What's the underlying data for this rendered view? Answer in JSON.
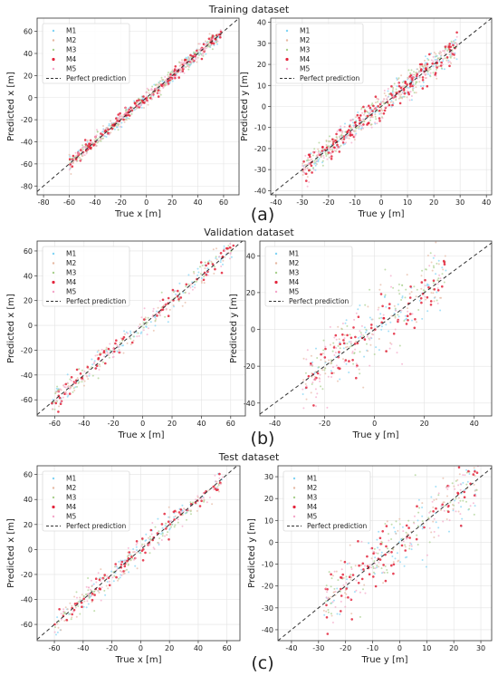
{
  "figure": {
    "section_titles": [
      "Training dataset",
      "Validation dataset",
      "Test dataset"
    ],
    "panel_labels": [
      "(a)",
      "(b)",
      "(c)"
    ],
    "legend": [
      "M1",
      "M2",
      "M3",
      "M4",
      "M5",
      "Perfect prediction"
    ],
    "series_colors": {
      "M1": "#7fd3f5",
      "M2": "#e6b8a2",
      "M3": "#a8d08d",
      "M4": "#e3243b",
      "M5": "#f4a6c8"
    },
    "perfect_color": "#333333"
  },
  "chart_data": [
    {
      "id": "train-x",
      "type": "scatter",
      "xlabel": "True x [m]",
      "ylabel": "Predicted x [m]",
      "xlim": [
        -85,
        72
      ],
      "ylim": [
        -88,
        72
      ],
      "xticks": [
        -80,
        -60,
        -40,
        -20,
        0,
        20,
        40,
        60
      ],
      "yticks": [
        -80,
        -60,
        -40,
        -20,
        0,
        20,
        40,
        60
      ],
      "data_range": [
        -60,
        58
      ],
      "spread": 3,
      "legend": "top-left",
      "grid": true
    },
    {
      "id": "train-y",
      "type": "scatter",
      "xlabel": "True y [m]",
      "ylabel": "Predicted y [m]",
      "xlim": [
        -42,
        42
      ],
      "ylim": [
        -42,
        42
      ],
      "xticks": [
        -40,
        -30,
        -20,
        -10,
        0,
        10,
        20,
        30,
        40
      ],
      "yticks": [
        -40,
        -30,
        -20,
        -10,
        0,
        10,
        20,
        30,
        40
      ],
      "data_range": [
        -30,
        29
      ],
      "spread": 3,
      "legend": "top-left",
      "grid": true
    },
    {
      "id": "val-x",
      "type": "scatter",
      "xlabel": "True x [m]",
      "ylabel": "Predicted x [m]",
      "xlim": [
        -72,
        70
      ],
      "ylim": [
        -73,
        68
      ],
      "xticks": [
        -60,
        -40,
        -20,
        0,
        20,
        40,
        60
      ],
      "yticks": [
        -60,
        -40,
        -20,
        0,
        20,
        40,
        60
      ],
      "data_range": [
        -62,
        62
      ],
      "spread": 5,
      "legend": "top-left",
      "grid": true
    },
    {
      "id": "val-y",
      "type": "scatter",
      "xlabel": "True y [m]",
      "ylabel": "Predicted y [m]",
      "xlim": [
        -46,
        47
      ],
      "ylim": [
        -47,
        48
      ],
      "xticks": [
        -40,
        -20,
        0,
        20,
        40
      ],
      "yticks": [
        -40,
        -20,
        0,
        20,
        40
      ],
      "data_range": [
        -29,
        29
      ],
      "spread": 9,
      "legend": "top-left",
      "grid": true
    },
    {
      "id": "test-x",
      "type": "scatter",
      "xlabel": "True x [m]",
      "ylabel": "Predicted x [m]",
      "xlim": [
        -72,
        69
      ],
      "ylim": [
        -73,
        67
      ],
      "xticks": [
        -60,
        -40,
        -20,
        0,
        20,
        40,
        60
      ],
      "yticks": [
        -60,
        -40,
        -20,
        0,
        20,
        40,
        60
      ],
      "data_range": [
        -60,
        57
      ],
      "spread": 5,
      "legend": "top-left",
      "grid": true
    },
    {
      "id": "test-y",
      "type": "scatter",
      "xlabel": "True y [m]",
      "ylabel": "Predicted y [m]",
      "xlim": [
        -45,
        34
      ],
      "ylim": [
        -45,
        35
      ],
      "xticks": [
        -40,
        -30,
        -20,
        -10,
        0,
        10,
        20,
        30
      ],
      "yticks": [
        -40,
        -30,
        -20,
        -10,
        0,
        10,
        20,
        30
      ],
      "data_range": [
        -28,
        29
      ],
      "spread": 7,
      "legend": "top-left",
      "grid": true
    }
  ]
}
